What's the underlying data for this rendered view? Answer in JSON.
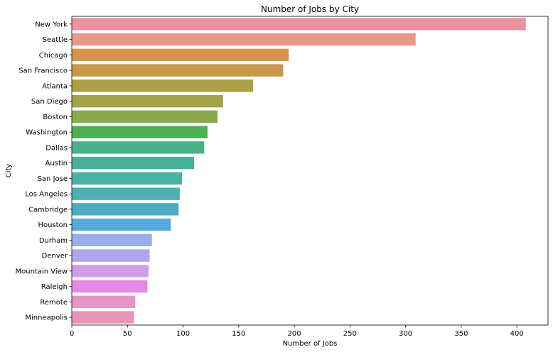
{
  "chart_data": {
    "type": "bar",
    "orientation": "horizontal",
    "title": "Number of Jobs by City",
    "xlabel": "Number of Jobs",
    "ylabel": "City",
    "xlim": [
      0,
      428
    ],
    "xticks": [
      0,
      50,
      100,
      150,
      200,
      250,
      300,
      350,
      400
    ],
    "grid": false,
    "categories": [
      "New York",
      "Seattle",
      "Chicago",
      "San Francisco",
      "Atlanta",
      "San Diego",
      "Boston",
      "Washington",
      "Dallas",
      "Austin",
      "San Jose",
      "Los Angeles",
      "Cambridge",
      "Houston",
      "Durham",
      "Denver",
      "Mountain View",
      "Raleigh",
      "Remote",
      "Minneapolis"
    ],
    "values": [
      408,
      309,
      195,
      190,
      163,
      136,
      131,
      122,
      119,
      110,
      99,
      97,
      96,
      89,
      72,
      70,
      69,
      68,
      57,
      56
    ],
    "colors": [
      "#ea929f",
      "#e8978a",
      "#d7944f",
      "#c69849",
      "#ad9f46",
      "#a0a447",
      "#8aa84c",
      "#4bb150",
      "#4daf85",
      "#49b098",
      "#4bb0a5",
      "#4cafb1",
      "#4dabc1",
      "#58a9db",
      "#97aeea",
      "#b0a4ea",
      "#d09ce9",
      "#e78ae5",
      "#e893cb",
      "#e894b9"
    ]
  }
}
